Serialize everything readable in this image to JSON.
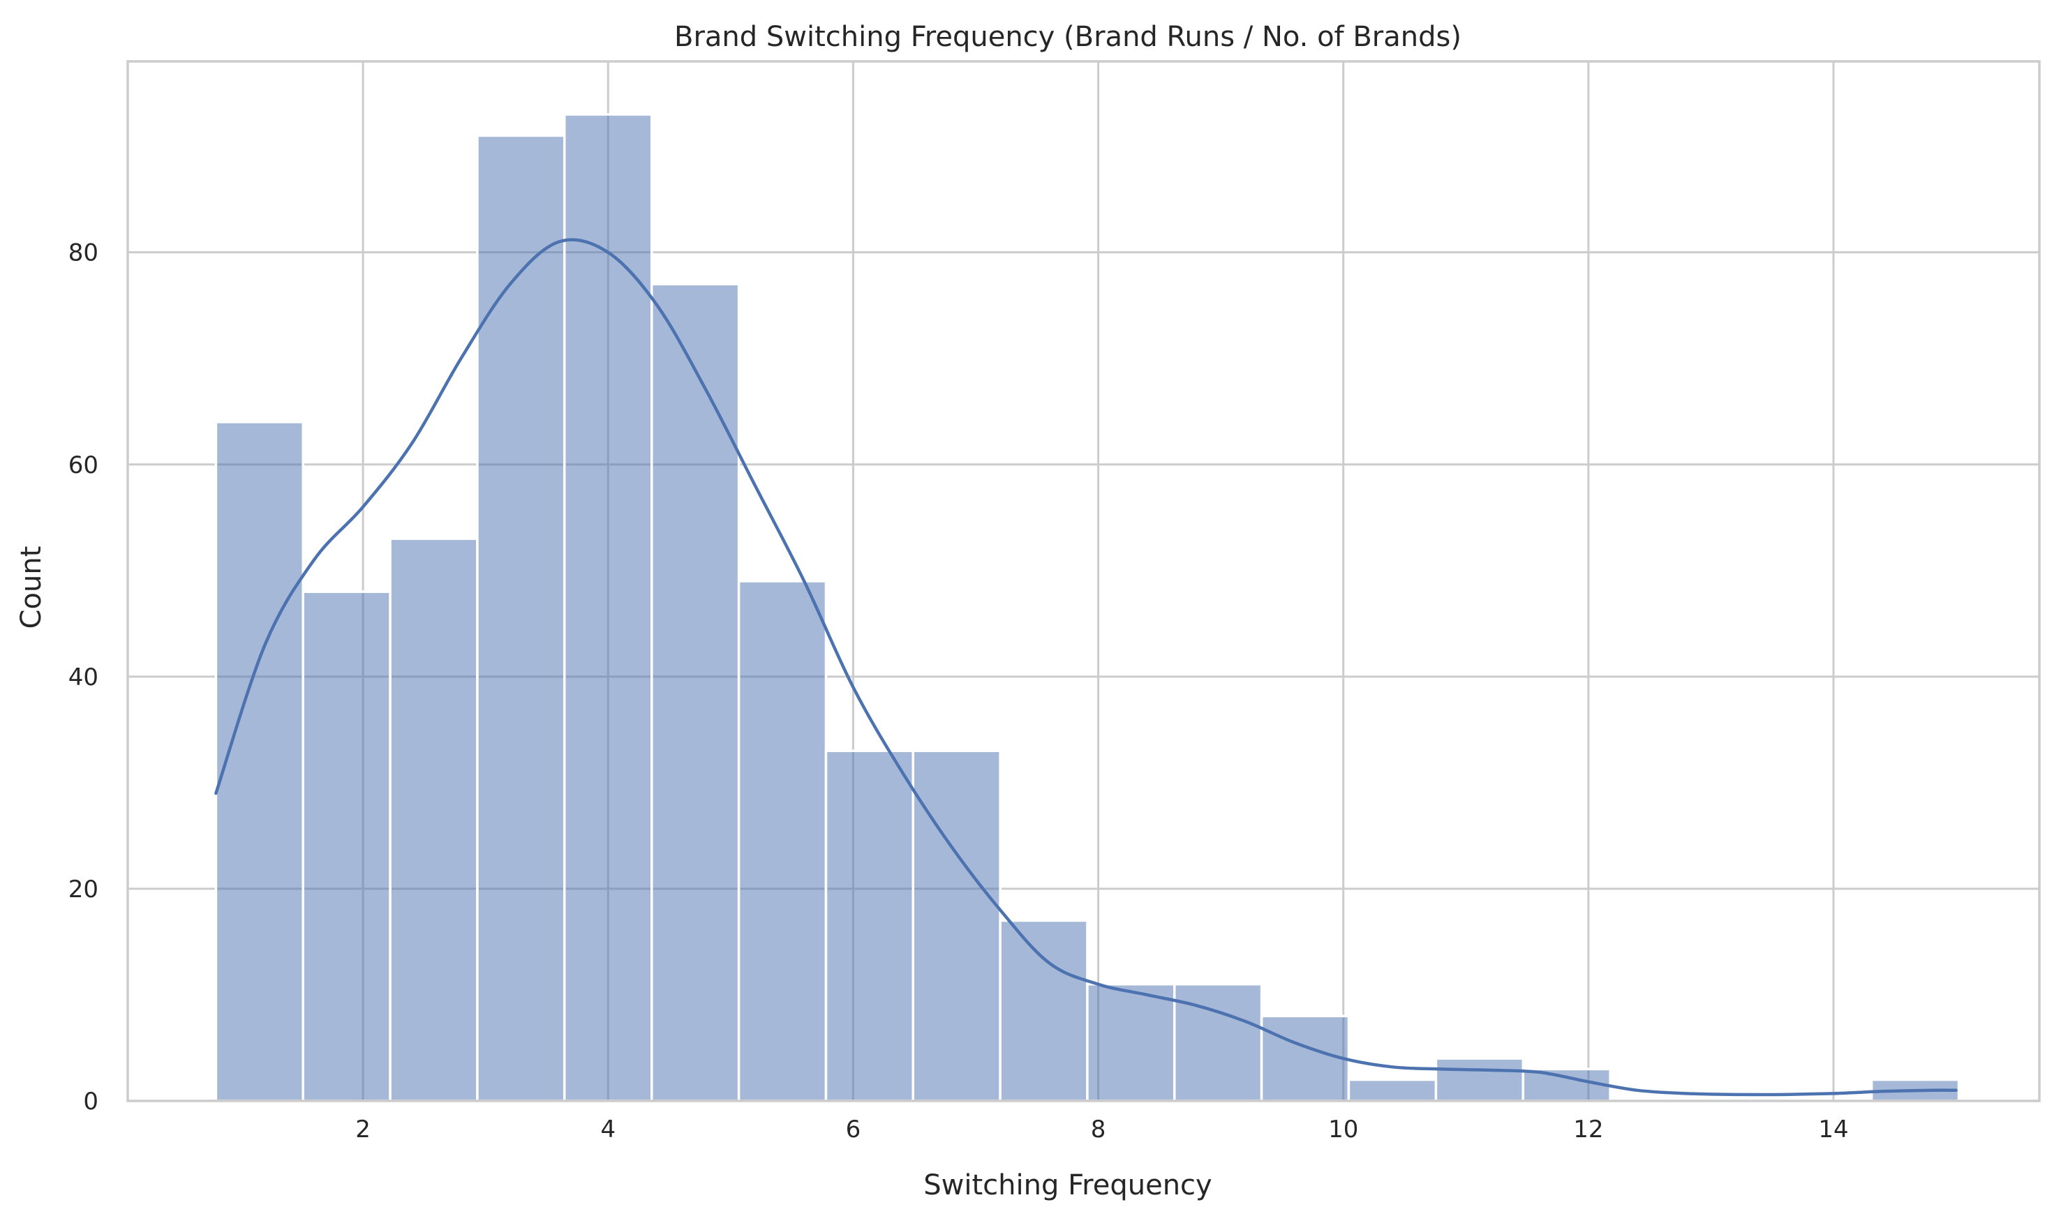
{
  "chart_data": {
    "type": "bar",
    "subtype": "histogram_with_kde",
    "title": "Brand Switching Frequency (Brand Runs / No. of Brands)",
    "xlabel": "Switching Frequency",
    "ylabel": "Count",
    "xlim": [
      0.08,
      15.68
    ],
    "ylim": [
      0,
      98
    ],
    "x_ticks": [
      2,
      4,
      6,
      8,
      10,
      12,
      14
    ],
    "y_ticks": [
      0,
      20,
      40,
      60,
      80
    ],
    "grid": true,
    "bin_edges": [
      0.8,
      1.511,
      2.222,
      2.933,
      3.644,
      4.356,
      5.067,
      5.778,
      6.489,
      7.2,
      7.911,
      8.622,
      9.333,
      10.044,
      10.756,
      11.467,
      12.178,
      12.889,
      13.6,
      14.311,
      15.022
    ],
    "values": [
      64,
      48,
      53,
      91,
      93,
      77,
      49,
      33,
      33,
      17,
      11,
      11,
      8,
      2,
      4,
      3,
      0,
      0,
      0,
      2
    ],
    "kde": {
      "x": [
        0.8,
        1.2,
        1.6,
        2.0,
        2.4,
        2.8,
        3.2,
        3.6,
        4.0,
        4.4,
        4.8,
        5.2,
        5.6,
        6.0,
        6.4,
        6.8,
        7.2,
        7.6,
        8.0,
        8.4,
        8.8,
        9.2,
        9.6,
        10.0,
        10.4,
        10.8,
        11.2,
        11.6,
        12.0,
        12.4,
        12.8,
        13.2,
        13.6,
        14.0,
        14.4,
        14.8,
        15.0
      ],
      "y": [
        29,
        43,
        51,
        56,
        62,
        70,
        77,
        81,
        80,
        75,
        67,
        58,
        49,
        39,
        31,
        24,
        18,
        13,
        11,
        10,
        9,
        7.5,
        5.5,
        4,
        3.2,
        3,
        2.9,
        2.7,
        1.8,
        1,
        0.7,
        0.6,
        0.6,
        0.7,
        0.9,
        1,
        1
      ]
    },
    "colors": {
      "bar_fill": "#4c72b0",
      "bar_alpha": 0.5,
      "kde_line": "#4c72b0"
    }
  }
}
